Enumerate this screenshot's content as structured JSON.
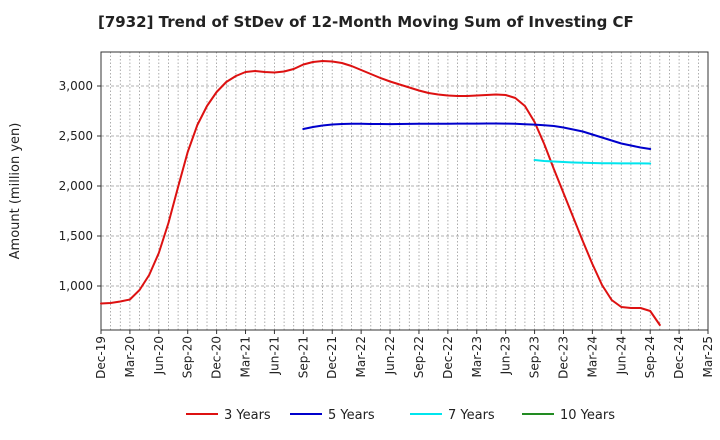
{
  "chart_data": {
    "type": "line",
    "title": "[7932]  Trend of StDev of 12-Month Moving Sum of Investing CF",
    "xlabel": "",
    "ylabel": "Amount (million yen)",
    "ylim": [
      560,
      3340
    ],
    "yticks": [
      1000,
      1500,
      2000,
      2500,
      3000
    ],
    "ytick_labels": [
      "1,000",
      "1,500",
      "2,000",
      "2,500",
      "3,000"
    ],
    "x_start_month": "2019-12",
    "x_end_month": "2025-03",
    "xtick_labels": [
      "Dec-19",
      "Mar-20",
      "Jun-20",
      "Sep-20",
      "Dec-20",
      "Mar-21",
      "Jun-21",
      "Sep-21",
      "Dec-21",
      "Mar-22",
      "Jun-22",
      "Sep-22",
      "Dec-22",
      "Mar-23",
      "Jun-23",
      "Sep-23",
      "Dec-23",
      "Mar-24",
      "Jun-24",
      "Sep-24",
      "Dec-24",
      "Mar-25"
    ],
    "grid": true,
    "legend_position": "bottom",
    "series": [
      {
        "name": "3 Years",
        "color": "#dd1111",
        "points": [
          [
            "2019-12",
            825
          ],
          [
            "2020-01",
            830
          ],
          [
            "2020-02",
            845
          ],
          [
            "2020-03",
            865
          ],
          [
            "2020-04",
            960
          ],
          [
            "2020-05",
            1110
          ],
          [
            "2020-06",
            1330
          ],
          [
            "2020-07",
            1630
          ],
          [
            "2020-08",
            1990
          ],
          [
            "2020-09",
            2340
          ],
          [
            "2020-10",
            2610
          ],
          [
            "2020-11",
            2800
          ],
          [
            "2020-12",
            2940
          ],
          [
            "2021-01",
            3040
          ],
          [
            "2021-02",
            3100
          ],
          [
            "2021-03",
            3140
          ],
          [
            "2021-04",
            3150
          ],
          [
            "2021-05",
            3140
          ],
          [
            "2021-06",
            3135
          ],
          [
            "2021-07",
            3145
          ],
          [
            "2021-08",
            3170
          ],
          [
            "2021-09",
            3215
          ],
          [
            "2021-10",
            3240
          ],
          [
            "2021-11",
            3250
          ],
          [
            "2021-12",
            3245
          ],
          [
            "2022-01",
            3230
          ],
          [
            "2022-02",
            3200
          ],
          [
            "2022-03",
            3160
          ],
          [
            "2022-04",
            3120
          ],
          [
            "2022-05",
            3080
          ],
          [
            "2022-06",
            3045
          ],
          [
            "2022-07",
            3015
          ],
          [
            "2022-08",
            2985
          ],
          [
            "2022-09",
            2955
          ],
          [
            "2022-10",
            2930
          ],
          [
            "2022-11",
            2915
          ],
          [
            "2022-12",
            2905
          ],
          [
            "2023-01",
            2900
          ],
          [
            "2023-02",
            2900
          ],
          [
            "2023-03",
            2905
          ],
          [
            "2023-04",
            2910
          ],
          [
            "2023-05",
            2915
          ],
          [
            "2023-06",
            2910
          ],
          [
            "2023-07",
            2880
          ],
          [
            "2023-08",
            2800
          ],
          [
            "2023-09",
            2640
          ],
          [
            "2023-10",
            2420
          ],
          [
            "2023-11",
            2170
          ],
          [
            "2023-12",
            1930
          ],
          [
            "2024-01",
            1690
          ],
          [
            "2024-02",
            1450
          ],
          [
            "2024-03",
            1220
          ],
          [
            "2024-04",
            1010
          ],
          [
            "2024-05",
            860
          ],
          [
            "2024-06",
            790
          ],
          [
            "2024-07",
            780
          ],
          [
            "2024-08",
            780
          ],
          [
            "2024-09",
            750
          ],
          [
            "2024-10",
            610
          ]
        ]
      },
      {
        "name": "5 Years",
        "color": "#0000cc",
        "points": [
          [
            "2021-09",
            2570
          ],
          [
            "2021-10",
            2590
          ],
          [
            "2021-11",
            2605
          ],
          [
            "2021-12",
            2615
          ],
          [
            "2022-01",
            2620
          ],
          [
            "2022-02",
            2622
          ],
          [
            "2022-03",
            2622
          ],
          [
            "2022-04",
            2620
          ],
          [
            "2022-05",
            2620
          ],
          [
            "2022-06",
            2619
          ],
          [
            "2022-07",
            2620
          ],
          [
            "2022-08",
            2621
          ],
          [
            "2022-09",
            2622
          ],
          [
            "2022-10",
            2622
          ],
          [
            "2022-11",
            2623
          ],
          [
            "2022-12",
            2623
          ],
          [
            "2023-01",
            2624
          ],
          [
            "2023-02",
            2624
          ],
          [
            "2023-03",
            2624
          ],
          [
            "2023-04",
            2625
          ],
          [
            "2023-05",
            2625
          ],
          [
            "2023-06",
            2624
          ],
          [
            "2023-07",
            2622
          ],
          [
            "2023-08",
            2618
          ],
          [
            "2023-09",
            2614
          ],
          [
            "2023-10",
            2608
          ],
          [
            "2023-11",
            2600
          ],
          [
            "2023-12",
            2585
          ],
          [
            "2024-01",
            2565
          ],
          [
            "2024-02",
            2545
          ],
          [
            "2024-03",
            2515
          ],
          [
            "2024-04",
            2485
          ],
          [
            "2024-05",
            2455
          ],
          [
            "2024-06",
            2425
          ],
          [
            "2024-07",
            2405
          ],
          [
            "2024-08",
            2385
          ],
          [
            "2024-09",
            2370
          ]
        ]
      },
      {
        "name": "7 Years",
        "color": "#00e5ee",
        "points": [
          [
            "2023-09",
            2260
          ],
          [
            "2023-10",
            2250
          ],
          [
            "2023-11",
            2245
          ],
          [
            "2023-12",
            2240
          ],
          [
            "2024-01",
            2235
          ],
          [
            "2024-02",
            2232
          ],
          [
            "2024-03",
            2230
          ],
          [
            "2024-04",
            2228
          ],
          [
            "2024-05",
            2227
          ],
          [
            "2024-06",
            2226
          ],
          [
            "2024-07",
            2226
          ],
          [
            "2024-08",
            2226
          ],
          [
            "2024-09",
            2225
          ]
        ]
      },
      {
        "name": "10 Years",
        "color": "#228B22",
        "points": []
      }
    ]
  }
}
